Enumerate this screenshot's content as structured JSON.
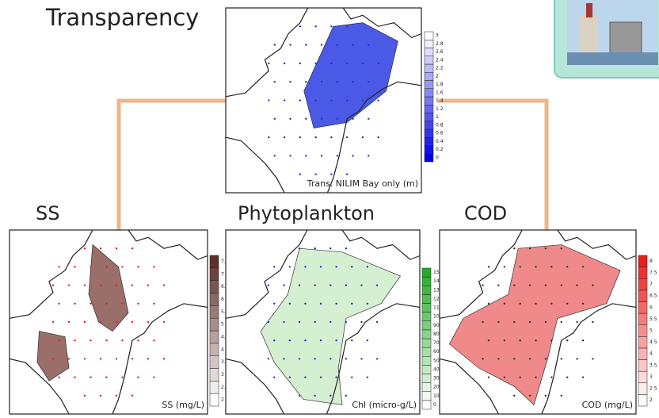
{
  "panels": [
    {
      "title": "Transparency",
      "caption": "Trans.  NILIM Bay only (m)",
      "colorbar": [
        0,
        0.2,
        0.4,
        0.6,
        0.8,
        1,
        1.2,
        1.4,
        1.6,
        1.8,
        2,
        2.2,
        2.4,
        2.6,
        2.8,
        3
      ]
    },
    {
      "title": "SS",
      "caption": "SS (mg/L)",
      "colorbar": [
        2,
        2.5,
        3,
        3.5,
        4,
        4.5,
        5,
        5.5,
        6,
        6.5,
        7,
        7.5
      ]
    },
    {
      "title": "Phytoplankton",
      "caption": "Chl (micro-g/L)",
      "colorbar": [
        0,
        10,
        20,
        30,
        40,
        50,
        60,
        70,
        80,
        90,
        100,
        110,
        120,
        130,
        140,
        150
      ]
    },
    {
      "title": "COD",
      "caption": "COD (mg/L)",
      "colorbar": [
        2,
        2.5,
        3,
        3.5,
        4,
        4.5,
        5,
        5.5,
        6,
        6.5,
        7,
        7.5,
        8
      ]
    }
  ]
}
